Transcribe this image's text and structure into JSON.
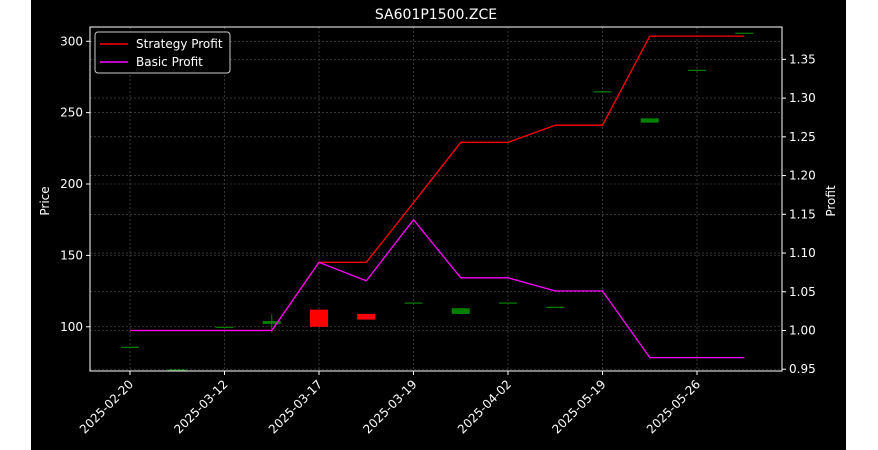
{
  "chart_data": {
    "type": "candlestick_with_lines",
    "title": "SA601P1500.ZCE",
    "ylabel_left": "Price",
    "ylabel_right": "Profit",
    "categories": [
      "2025-02-20",
      "2025-03-12",
      "2025-03-17",
      "2025-03-19",
      "2025-04-02",
      "2025-05-19",
      "2025-05-26"
    ],
    "left_axis": {
      "ylim": [
        69,
        310
      ],
      "ticks": [
        100,
        150,
        200,
        250,
        300
      ]
    },
    "right_axis": {
      "ylim": [
        0.9477,
        1.3918
      ],
      "ticks": [
        0.95,
        1.0,
        1.05,
        1.1,
        1.15,
        1.2,
        1.25,
        1.3,
        1.35
      ]
    },
    "grid": true,
    "legend_position": "top-left",
    "colors": {
      "background": "#000000",
      "text": "#ffffff",
      "up": "#008000",
      "down": "#ff0000",
      "strategy": "#ff0000",
      "basic": "#ff00ff",
      "grid": "#808080"
    },
    "candles": [
      {
        "x": 0,
        "open": 86,
        "close": 86,
        "high": 86,
        "low": 86
      },
      {
        "x": 0.5,
        "open": 70,
        "close": 70,
        "high": 70,
        "low": 70
      },
      {
        "x": 1,
        "open": 100,
        "close": 100,
        "high": 100,
        "low": 100
      },
      {
        "x": 1.5,
        "open": 102,
        "close": 104,
        "high": 109,
        "low": 96
      },
      {
        "x": 2,
        "open": 112,
        "close": 100,
        "high": 112,
        "low": 100
      },
      {
        "x": 2.5,
        "open": 109,
        "close": 105,
        "high": 109,
        "low": 105
      },
      {
        "x": 3,
        "open": 117,
        "close": 117,
        "high": 117,
        "low": 117
      },
      {
        "x": 3.5,
        "open": 109,
        "close": 113,
        "high": 113,
        "low": 109
      },
      {
        "x": 4,
        "open": 117,
        "close": 117,
        "high": 117,
        "low": 117
      },
      {
        "x": 4.5,
        "open": 114,
        "close": 114,
        "high": 114,
        "low": 114
      },
      {
        "x": 5,
        "open": 265,
        "close": 265,
        "high": 265,
        "low": 265
      },
      {
        "x": 5.5,
        "open": 243,
        "close": 246,
        "high": 246,
        "low": 243
      },
      {
        "x": 6,
        "open": 280,
        "close": 280,
        "high": 280,
        "low": 280
      },
      {
        "x": 6.5,
        "open": 306,
        "close": 306,
        "high": 306,
        "low": 306
      }
    ],
    "series": [
      {
        "name": "Strategy Profit",
        "color": "#ff0000",
        "x": [
          0,
          0.5,
          1,
          1.5,
          2,
          2.5,
          3,
          3.5,
          4,
          4.5,
          5,
          5.5,
          6,
          6.5
        ],
        "values": [
          1.0,
          1.0,
          1.0,
          1.0,
          1.088,
          1.088,
          1.165,
          1.243,
          1.243,
          1.265,
          1.265,
          1.38,
          1.38,
          1.38
        ]
      },
      {
        "name": "Basic Profit",
        "color": "#ff00ff",
        "x": [
          0,
          0.5,
          1,
          1.5,
          2,
          2.5,
          3,
          3.5,
          4,
          4.5,
          5,
          5.5,
          6,
          6.5
        ],
        "values": [
          1.0,
          1.0,
          1.0,
          1.0,
          1.088,
          1.064,
          1.143,
          1.068,
          1.068,
          1.051,
          1.051,
          0.965,
          0.965,
          0.965
        ]
      }
    ]
  }
}
